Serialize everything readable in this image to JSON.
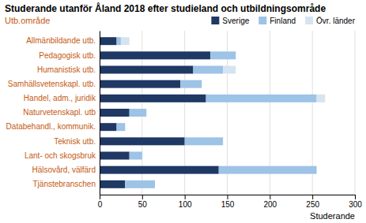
{
  "chart_data": {
    "type": "bar",
    "orientation": "horizontal",
    "stacked": true,
    "title": "Studerande utanför Åland 2018 efter studieland och utbildningsområde",
    "xlabel": "Studerande",
    "ylabel": "Utb.område",
    "categories": [
      "Allmänbildande utb.",
      "Pedagogisk utb.",
      "Humanistisk utb.",
      "Samhällsvetenskapl. utb.",
      "Handel, adm., juridik",
      "Naturvetenskapl. utb",
      "Databehandl., kommunik.",
      "Teknisk utb.",
      "Lant- och skogsbruk",
      "Hälsovård, välfärd",
      "Tjänstebranschen"
    ],
    "series": [
      {
        "name": "Sverige",
        "color": "#1F3864",
        "values": [
          20,
          130,
          110,
          95,
          125,
          35,
          20,
          100,
          35,
          140,
          30
        ]
      },
      {
        "name": "Finland",
        "color": "#9DC3E6",
        "values": [
          5,
          30,
          35,
          25,
          130,
          20,
          10,
          45,
          15,
          115,
          35
        ]
      },
      {
        "name": "Övr. länder",
        "color": "#D6E4F0",
        "values": [
          10,
          0,
          15,
          0,
          10,
          0,
          0,
          0,
          0,
          0,
          0
        ]
      }
    ],
    "xlim": [
      0,
      300
    ],
    "xticks": [
      0,
      50,
      100,
      150,
      200,
      250,
      300
    ],
    "grid": true,
    "legend": "top"
  }
}
